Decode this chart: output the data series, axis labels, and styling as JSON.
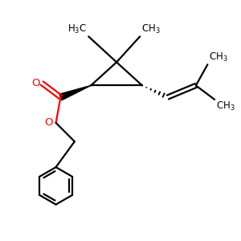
{
  "background": "#ffffff",
  "bond_color": "#000000",
  "oxygen_color": "#ff0000",
  "line_width": 1.6,
  "font_size": 8.5,
  "figsize": [
    3.0,
    3.0
  ],
  "dpi": 100
}
